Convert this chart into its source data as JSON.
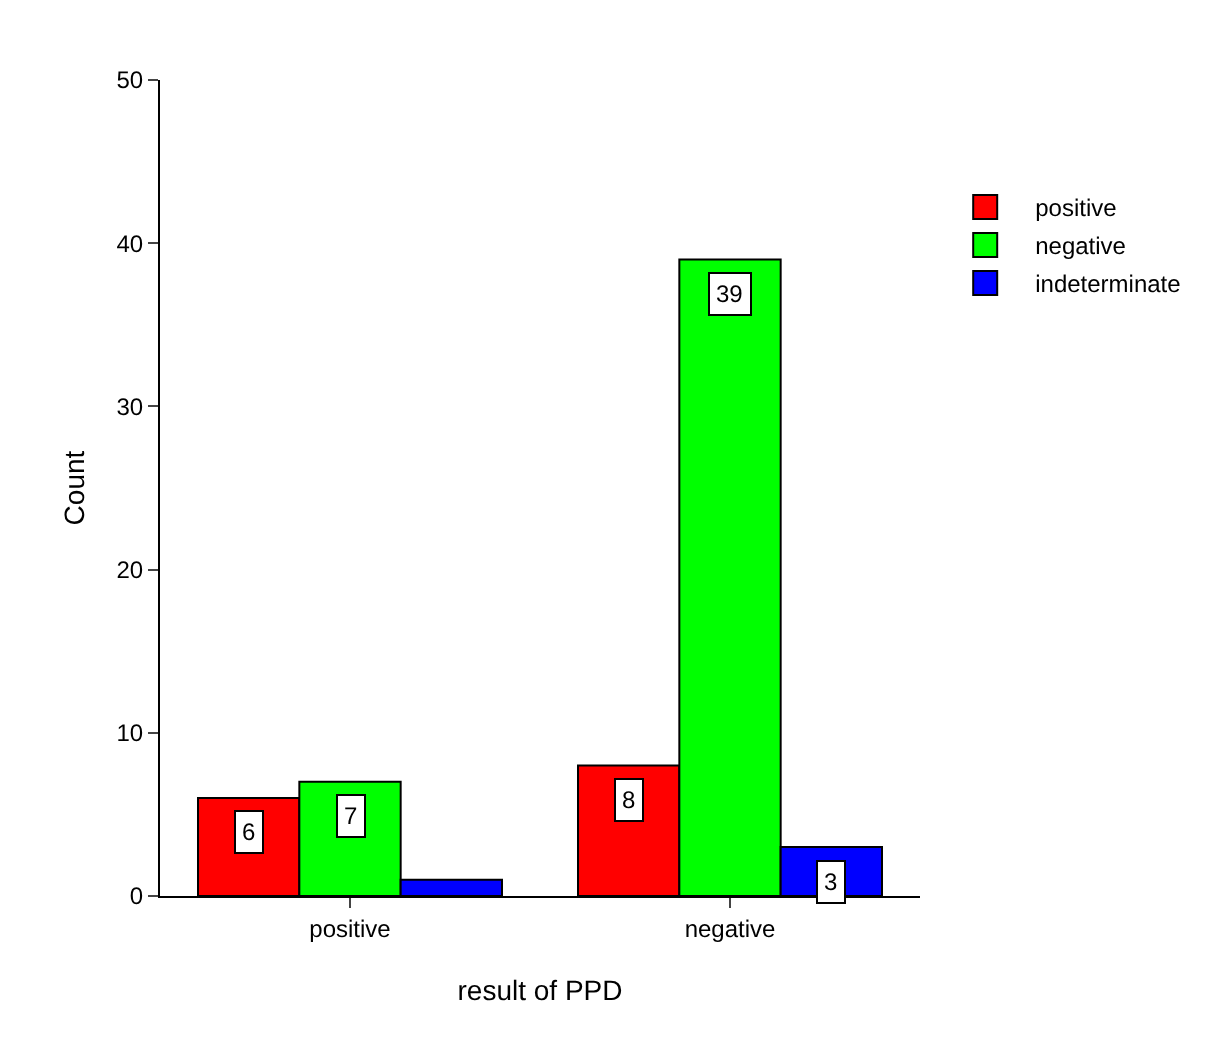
{
  "chart_data": {
    "type": "bar",
    "xlabel": "result of PPD",
    "ylabel": "Count",
    "categories": [
      "positive",
      "negative"
    ],
    "series": [
      {
        "name": "positive",
        "color": "#ff0000",
        "values": [
          6,
          8
        ],
        "value_labels": [
          "6",
          "8"
        ]
      },
      {
        "name": "negative",
        "color": "#00ff00",
        "values": [
          7,
          39
        ],
        "value_labels": [
          "7",
          "39"
        ]
      },
      {
        "name": "indeterminate",
        "color": "#0000ff",
        "values": [
          1,
          3
        ],
        "value_labels": [
          null,
          "3"
        ]
      }
    ],
    "ylim": [
      0,
      50
    ],
    "yticks": [
      0,
      10,
      20,
      30,
      40,
      50
    ],
    "grid": false,
    "legend": "top right"
  }
}
